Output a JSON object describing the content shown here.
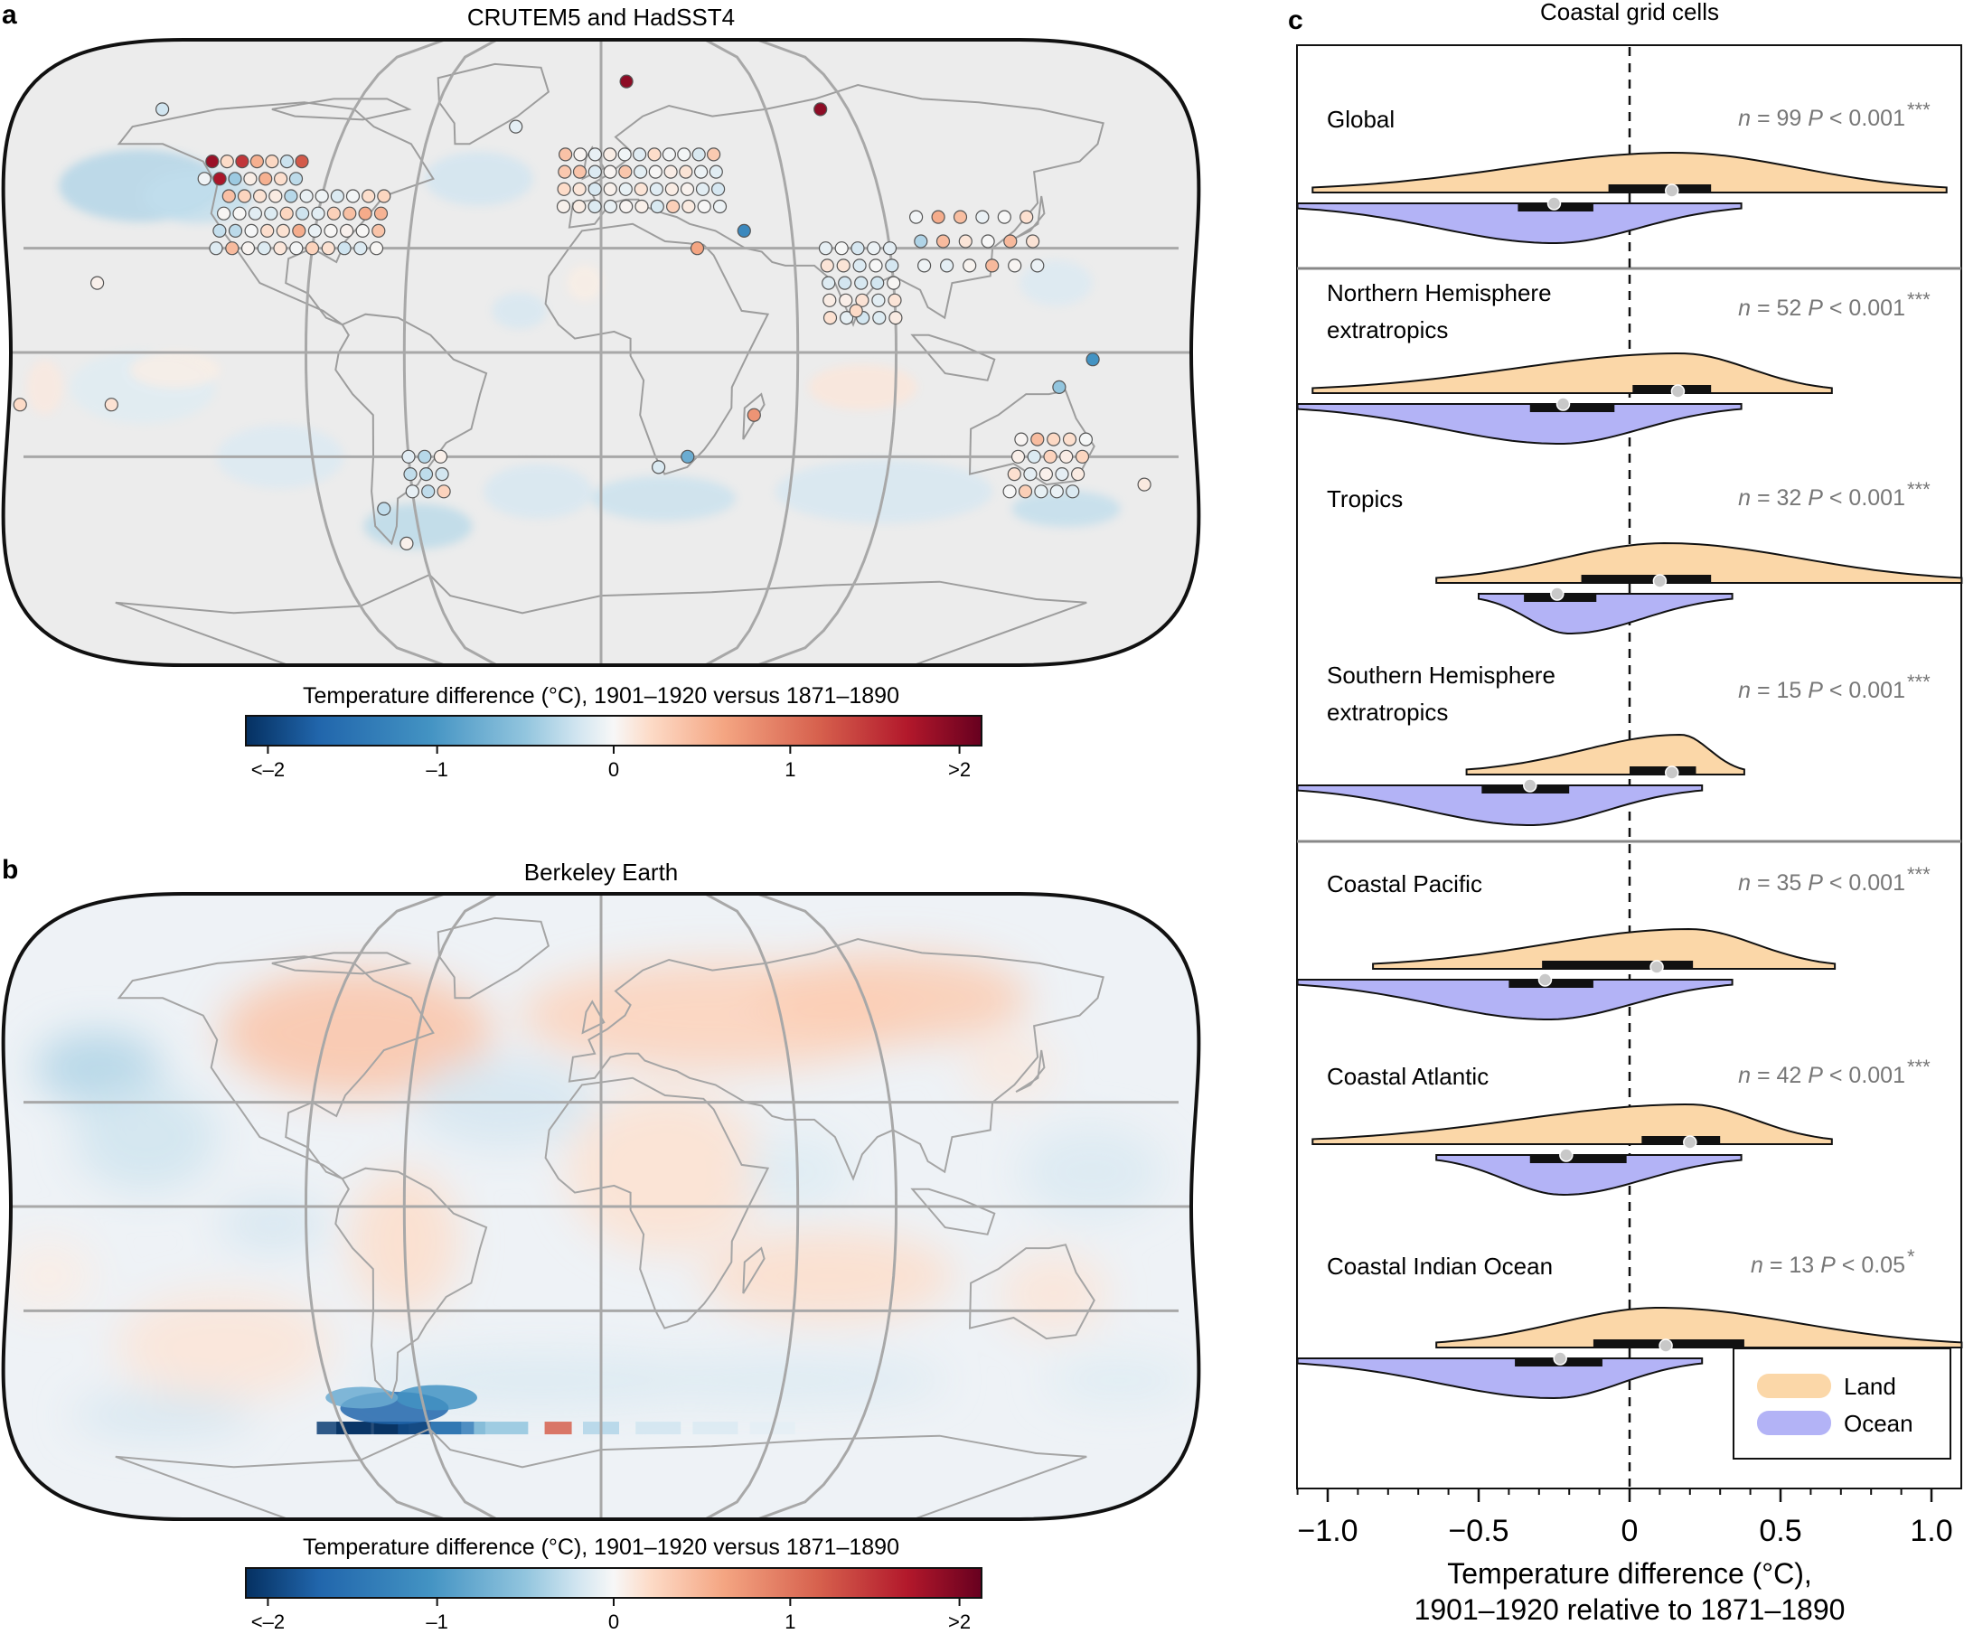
{
  "panel_letters": {
    "a": "a",
    "b": "b",
    "c": "c"
  },
  "colors": {
    "land": "#fbd7a8",
    "ocean": "#b3b3f6",
    "map_bg": "#ececec",
    "colormap": [
      "#053061",
      "#2166ac",
      "#4393c3",
      "#92c5de",
      "#d1e5f0",
      "#f7f7f7",
      "#fddbc7",
      "#f4a582",
      "#d6604d",
      "#b2182b",
      "#67001f"
    ]
  },
  "map_a": {
    "title": "CRUTEM5 and HadSST4",
    "colorbar_label": "Temperature difference (°C), 1901–1920 versus 1871–1890",
    "colorbar_ticks": [
      "<–2",
      "–1",
      "0",
      "1",
      ">2"
    ]
  },
  "map_b": {
    "title": "Berkeley Earth",
    "colorbar_label": "Temperature difference (°C), 1901–1920 versus 1871–1890",
    "colorbar_ticks": [
      "<–2",
      "–1",
      "0",
      "1",
      ">2"
    ]
  },
  "chart_data": {
    "type": "violin",
    "title": "Coastal grid cells",
    "xlabel_line1": "Temperature difference (°C),",
    "xlabel_line2": "1901–1920 relative to 1871–1890",
    "xlim": [
      -1.1,
      1.1
    ],
    "xticks": [
      -1.0,
      -0.5,
      0,
      0.5,
      1.0
    ],
    "xtick_labels": [
      "−1.0",
      "−0.5",
      "0",
      "0.5",
      "1.0"
    ],
    "legend": {
      "position": "bottom-right",
      "land": "Land",
      "ocean": "Ocean"
    },
    "groups": [
      {
        "name1": "Global",
        "name2": "",
        "n_label": "n",
        "n_eq": " = 99",
        "p_label": "P < 0.001",
        "stars": "***",
        "land": {
          "lo": -1.05,
          "hi": 1.05,
          "peak": 0.15,
          "box": [
            -0.07,
            0.27
          ],
          "median": 0.14
        },
        "ocean": {
          "lo": -1.1,
          "hi": 0.37,
          "peak": -0.25,
          "box": [
            -0.37,
            -0.12
          ],
          "median": -0.25
        }
      },
      {
        "name1": "Northern Hemisphere",
        "name2": "extratropics",
        "n_label": "n",
        "n_eq": " = 52",
        "p_label": "P < 0.001",
        "stars": "***",
        "land": {
          "lo": -1.05,
          "hi": 0.67,
          "peak": 0.17,
          "box": [
            0.01,
            0.27
          ],
          "median": 0.16
        },
        "ocean": {
          "lo": -1.1,
          "hi": 0.37,
          "peak": -0.23,
          "box": [
            -0.33,
            -0.05
          ],
          "median": -0.22
        }
      },
      {
        "name1": "Tropics",
        "name2": "",
        "n_label": "n",
        "n_eq": " = 32",
        "p_label": "P < 0.001",
        "stars": "***",
        "land": {
          "lo": -0.64,
          "hi": 1.1,
          "peak": 0.12,
          "box": [
            -0.16,
            0.27
          ],
          "median": 0.1
        },
        "ocean": {
          "lo": -0.5,
          "hi": 0.34,
          "peak": -0.2,
          "box": [
            -0.35,
            -0.11
          ],
          "median": -0.24
        }
      },
      {
        "name1": "Southern Hemisphere",
        "name2": "extratropics",
        "n_label": "n",
        "n_eq": " = 15",
        "p_label": "P < 0.001",
        "stars": "***",
        "land": {
          "lo": -0.54,
          "hi": 0.38,
          "peak": 0.17,
          "box": [
            0.0,
            0.22
          ],
          "median": 0.14
        },
        "ocean": {
          "lo": -1.1,
          "hi": 0.24,
          "peak": -0.33,
          "box": [
            -0.49,
            -0.2
          ],
          "median": -0.33
        }
      },
      {
        "name1": "Coastal Pacific",
        "name2": "",
        "n_label": "n",
        "n_eq": " = 35",
        "p_label": "P < 0.001",
        "stars": "***",
        "land": {
          "lo": -0.85,
          "hi": 0.68,
          "peak": 0.2,
          "box": [
            -0.29,
            0.21
          ],
          "median": 0.09
        },
        "ocean": {
          "lo": -1.1,
          "hi": 0.34,
          "peak": -0.27,
          "box": [
            -0.4,
            -0.12
          ],
          "median": -0.28
        }
      },
      {
        "name1": "Coastal Atlantic",
        "name2": "",
        "n_label": "n",
        "n_eq": " = 42",
        "p_label": "P < 0.001",
        "stars": "***",
        "land": {
          "lo": -1.05,
          "hi": 0.67,
          "peak": 0.2,
          "box": [
            0.04,
            0.3
          ],
          "median": 0.2
        },
        "ocean": {
          "lo": -0.64,
          "hi": 0.37,
          "peak": -0.22,
          "box": [
            -0.33,
            -0.01
          ],
          "median": -0.21
        }
      },
      {
        "name1": "Coastal Indian Ocean",
        "name2": "",
        "n_label": "n",
        "n_eq": "  = 13",
        "p_label": "P < 0.05",
        "stars": "*",
        "land": {
          "lo": -0.64,
          "hi": 1.1,
          "peak": 0.1,
          "box": [
            -0.12,
            0.38
          ],
          "median": 0.12
        },
        "ocean": {
          "lo": -1.1,
          "hi": 0.24,
          "peak": -0.25,
          "box": [
            -0.38,
            -0.09
          ],
          "median": -0.23
        }
      }
    ]
  }
}
